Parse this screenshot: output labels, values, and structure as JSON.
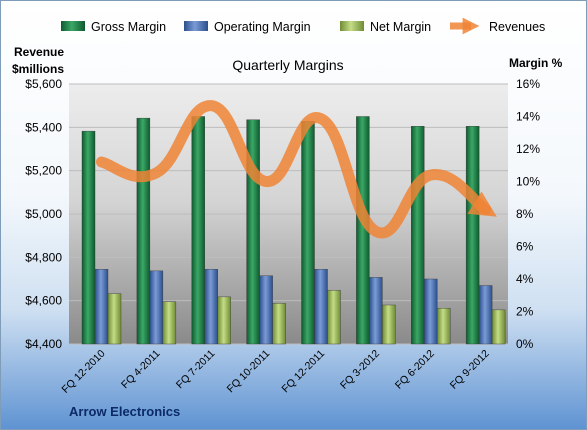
{
  "chart_data": {
    "type": "bar",
    "title": "Quarterly Margins",
    "left_axis_label": [
      "Revenue",
      "$millions"
    ],
    "right_axis_label": "Margin %",
    "footer": "Arrow Electronics",
    "categories": [
      "FQ 12-2010",
      "FQ 4-2011",
      "FQ 7-2011",
      "FQ 10-2011",
      "FQ 12-2011",
      "FQ 3-2012",
      "FQ 6-2012",
      "FQ 9-2012"
    ],
    "left_axis": {
      "min": 4400,
      "max": 5600,
      "step": 200,
      "ticks": [
        "$4,400",
        "$4,600",
        "$4,800",
        "$5,000",
        "$5,200",
        "$5,400",
        "$5,600"
      ]
    },
    "right_axis": {
      "min": 0,
      "max": 16,
      "step": 2,
      "ticks": [
        "0%",
        "2%",
        "4%",
        "6%",
        "8%",
        "10%",
        "12%",
        "14%",
        "16%"
      ]
    },
    "series": [
      {
        "name": "Gross Margin",
        "axis": "right",
        "kind": "bar",
        "color": "#1e7b45",
        "values": [
          13.1,
          13.9,
          14.0,
          13.8,
          13.7,
          14.0,
          13.4,
          13.4
        ]
      },
      {
        "name": "Operating Margin",
        "axis": "right",
        "kind": "bar",
        "color": "#4a73b8",
        "values": [
          4.6,
          4.5,
          4.6,
          4.2,
          4.6,
          4.1,
          4.0,
          3.6
        ]
      },
      {
        "name": "Net Margin",
        "axis": "right",
        "kind": "bar",
        "color": "#9bbb59",
        "values": [
          3.1,
          2.6,
          2.9,
          2.5,
          3.3,
          2.4,
          2.2,
          2.1
        ]
      },
      {
        "name": "Revenues",
        "axis": "left",
        "kind": "line",
        "color": "#ee8435",
        "values": [
          5240,
          5190,
          5500,
          5150,
          5440,
          4920,
          5180,
          5020
        ]
      }
    ],
    "grid": true,
    "legend": "top"
  }
}
